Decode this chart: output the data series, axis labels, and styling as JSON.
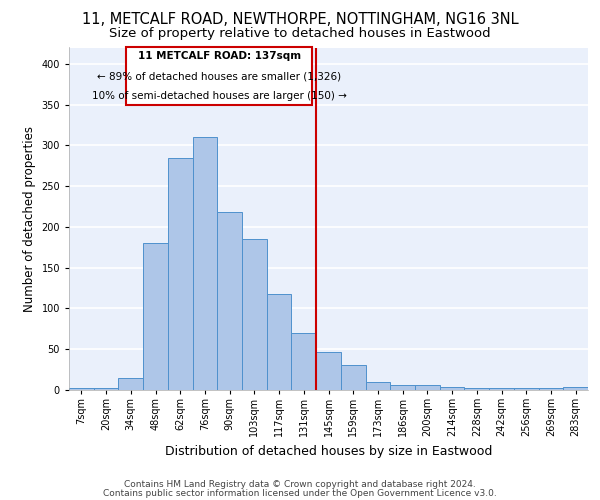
{
  "title1": "11, METCALF ROAD, NEWTHORPE, NOTTINGHAM, NG16 3NL",
  "title2": "Size of property relative to detached houses in Eastwood",
  "xlabel": "Distribution of detached houses by size in Eastwood",
  "ylabel": "Number of detached properties",
  "categories": [
    "7sqm",
    "20sqm",
    "34sqm",
    "48sqm",
    "62sqm",
    "76sqm",
    "90sqm",
    "103sqm",
    "117sqm",
    "131sqm",
    "145sqm",
    "159sqm",
    "173sqm",
    "186sqm",
    "200sqm",
    "214sqm",
    "228sqm",
    "242sqm",
    "256sqm",
    "269sqm",
    "283sqm"
  ],
  "values": [
    3,
    3,
    15,
    180,
    285,
    310,
    218,
    185,
    118,
    70,
    46,
    31,
    10,
    6,
    6,
    4,
    3,
    3,
    3,
    3,
    4
  ],
  "bar_color": "#aec6e8",
  "bar_edge_color": "#4f91cd",
  "bg_color": "#eaf0fb",
  "grid_color": "#ffffff",
  "vline_x": 9.5,
  "vline_color": "#cc0000",
  "annotation_text_line1": "11 METCALF ROAD: 137sqm",
  "annotation_text_line2": "← 89% of detached houses are smaller (1,326)",
  "annotation_text_line3": "10% of semi-detached houses are larger (150) →",
  "annotation_box_color": "#cc0000",
  "annotation_text_color": "#000000",
  "footer1": "Contains HM Land Registry data © Crown copyright and database right 2024.",
  "footer2": "Contains public sector information licensed under the Open Government Licence v3.0.",
  "ylim": [
    0,
    420
  ],
  "title1_fontsize": 10.5,
  "title2_fontsize": 9.5,
  "xlabel_fontsize": 9,
  "ylabel_fontsize": 8.5,
  "tick_fontsize": 7,
  "annotation_fontsize": 7.5,
  "footer_fontsize": 6.5
}
